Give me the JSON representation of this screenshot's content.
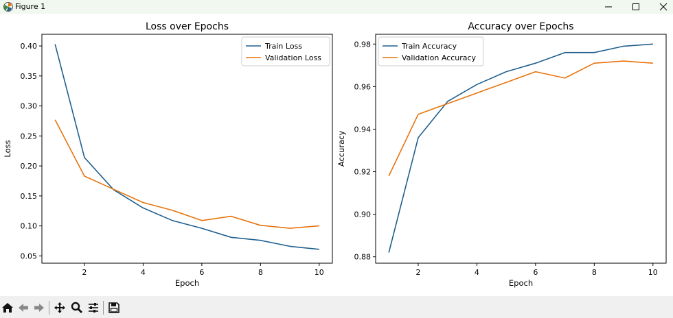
{
  "window": {
    "title": "Figure 1",
    "icon": "matplotlib-figure-icon"
  },
  "chart_data": [
    {
      "type": "line",
      "title": "Loss over Epochs",
      "xlabel": "Epoch",
      "ylabel": "Loss",
      "x": [
        1,
        2,
        3,
        4,
        5,
        6,
        7,
        8,
        9,
        10
      ],
      "xlim": [
        0.55,
        10.45
      ],
      "ylim": [
        0.0379,
        0.4195
      ],
      "xticks": [
        2,
        4,
        6,
        8,
        10
      ],
      "yticks": [
        0.05,
        0.1,
        0.15,
        0.2,
        0.25,
        0.3,
        0.35,
        0.4
      ],
      "grid": false,
      "legend": "top-right",
      "series": [
        {
          "name": "Train Loss",
          "color": "#1f5f8f",
          "values": [
            0.403,
            0.214,
            0.16,
            0.13,
            0.109,
            0.096,
            0.081,
            0.076,
            0.066,
            0.061
          ]
        },
        {
          "name": "Validation Loss",
          "color": "#e8730c",
          "values": [
            0.277,
            0.183,
            0.161,
            0.139,
            0.126,
            0.109,
            0.116,
            0.101,
            0.096,
            0.1
          ]
        }
      ]
    },
    {
      "type": "line",
      "title": "Accuracy over Epochs",
      "xlabel": "Epoch",
      "ylabel": "Accuracy",
      "x": [
        1,
        2,
        3,
        4,
        5,
        6,
        7,
        8,
        9,
        10
      ],
      "xlim": [
        0.55,
        10.45
      ],
      "ylim": [
        0.877,
        0.9846
      ],
      "xticks": [
        2,
        4,
        6,
        8,
        10
      ],
      "yticks": [
        0.88,
        0.9,
        0.92,
        0.94,
        0.96,
        0.98
      ],
      "grid": false,
      "legend": "top-left",
      "series": [
        {
          "name": "Train Accuracy",
          "color": "#1f5f8f",
          "values": [
            0.882,
            0.936,
            0.953,
            0.961,
            0.967,
            0.971,
            0.976,
            0.976,
            0.979,
            0.98
          ]
        },
        {
          "name": "Validation Accuracy",
          "color": "#e8730c",
          "values": [
            0.918,
            0.947,
            0.952,
            0.957,
            0.962,
            0.967,
            0.964,
            0.971,
            0.972,
            0.971
          ]
        }
      ]
    }
  ],
  "toolbar": {
    "icons": [
      "home-icon",
      "back-icon",
      "forward-icon",
      "pan-icon",
      "zoom-icon",
      "configure-subplots-icon",
      "save-icon"
    ]
  }
}
